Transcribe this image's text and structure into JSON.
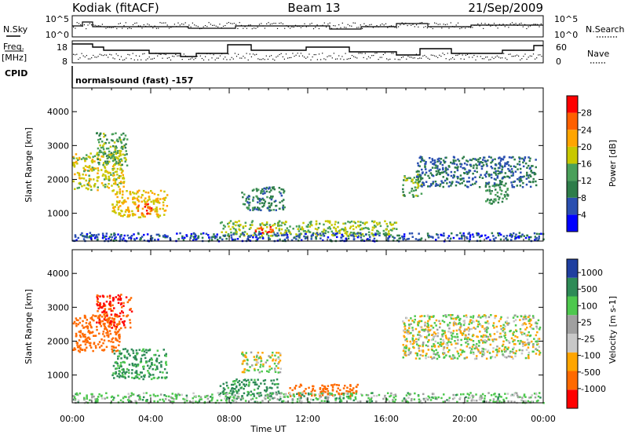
{
  "header": {
    "station": "Kodiak (fitACF)",
    "beam": "Beam 13",
    "date": "21/Sep/2009"
  },
  "summary": {
    "nsky_label": "N.Sky",
    "nsearch_label": "N.Search",
    "noise_ticks_left": [
      "10^5",
      "10^0"
    ],
    "noise_ticks_right": [
      "10^5",
      "10^0"
    ],
    "freq_label": "Freq.",
    "freq_unit": "[MHz]",
    "freq_ticks": [
      "18",
      "8"
    ],
    "nave_label": "Nave",
    "nave_ticks": [
      "60",
      "0"
    ],
    "cpid_label": "CPID",
    "cpid_text": "normalsound (fast) -157"
  },
  "colors": {
    "power": [
      "#0000ff",
      "#2a4fb0",
      "#2e7d4a",
      "#4aa05a",
      "#c8c800",
      "#ffa500",
      "#ff6000",
      "#ff0000"
    ],
    "velocity": [
      "#ff0000",
      "#ff6a00",
      "#ffa500",
      "#c8c8c8",
      "#a0a0a0",
      "#4ec84e",
      "#2e8b57",
      "#1f3fa0"
    ]
  },
  "chart_data": [
    {
      "type": "heatmap",
      "name": "power",
      "xlabel": "",
      "ylabel": "Slant Range [km]",
      "yticks": [
        "1000",
        "2000",
        "3000",
        "4000"
      ],
      "ylim": [
        180,
        4700
      ],
      "xlim": [
        "00:00",
        "24:00"
      ],
      "colorbar_label": "Power [dB]",
      "colorbar_ticks": [
        "4",
        "8",
        "12",
        "16",
        "20",
        "24",
        "28"
      ],
      "clim": [
        0,
        32
      ],
      "regions": [
        {
          "t0": 0.0,
          "t1": 2.6,
          "r0": 1700,
          "r1": 2800,
          "value": 18
        },
        {
          "t0": 1.2,
          "t1": 2.8,
          "r0": 2400,
          "r1": 3400,
          "value": 14
        },
        {
          "t0": 2.0,
          "t1": 4.8,
          "r0": 900,
          "r1": 1700,
          "value": 20
        },
        {
          "t0": 3.2,
          "t1": 4.0,
          "r0": 1000,
          "r1": 1300,
          "value": 28
        },
        {
          "t0": 7.5,
          "t1": 16.5,
          "r0": 350,
          "r1": 800,
          "value": 16
        },
        {
          "t0": 9.2,
          "t1": 10.2,
          "r0": 450,
          "r1": 650,
          "value": 28
        },
        {
          "t0": 8.6,
          "t1": 10.8,
          "r0": 1100,
          "r1": 1800,
          "value": 10
        },
        {
          "t0": 16.8,
          "t1": 17.8,
          "r0": 1500,
          "r1": 2200,
          "value": 14
        },
        {
          "t0": 17.5,
          "t1": 23.6,
          "r0": 1800,
          "r1": 2700,
          "value": 8
        },
        {
          "t0": 21.0,
          "t1": 22.2,
          "r0": 1300,
          "r1": 1900,
          "value": 12
        },
        {
          "t0": 0.0,
          "t1": 24.0,
          "r0": 200,
          "r1": 450,
          "value": 6
        }
      ]
    },
    {
      "type": "heatmap",
      "name": "velocity",
      "xlabel": "Time UT",
      "ylabel": "Slant Range [km]",
      "xticks": [
        "00:00",
        "04:00",
        "08:00",
        "12:00",
        "16:00",
        "20:00",
        "00:00"
      ],
      "yticks": [
        "1000",
        "2000",
        "3000",
        "4000"
      ],
      "ylim": [
        180,
        4700
      ],
      "xlim": [
        "00:00",
        "24:00"
      ],
      "colorbar_label": "Velocity [m s-1]",
      "colorbar_ticks": [
        "1000",
        "500",
        "100",
        "25",
        "-25",
        "-100",
        "-500",
        "-1000"
      ],
      "regions": [
        {
          "t0": 0.0,
          "t1": 2.4,
          "r0": 1700,
          "r1": 2800,
          "value": -300
        },
        {
          "t0": 1.2,
          "t1": 3.0,
          "r0": 2400,
          "r1": 3400,
          "value": -500
        },
        {
          "t0": 2.0,
          "t1": 4.8,
          "r0": 900,
          "r1": 1800,
          "value": 120
        },
        {
          "t0": 7.5,
          "t1": 10.5,
          "r0": 400,
          "r1": 900,
          "value": 150
        },
        {
          "t0": 11.0,
          "t1": 14.5,
          "r0": 400,
          "r1": 750,
          "value": -200
        },
        {
          "t0": 8.6,
          "t1": 10.6,
          "r0": 1100,
          "r1": 1700,
          "value": 0
        },
        {
          "t0": 16.8,
          "t1": 23.8,
          "r0": 1500,
          "r1": 2800,
          "value": 0
        },
        {
          "t0": 0.0,
          "t1": 24.0,
          "r0": 200,
          "r1": 500,
          "value": 50
        }
      ]
    }
  ],
  "time_ticks": [
    "00:00",
    "04:00",
    "08:00",
    "12:00",
    "16:00",
    "20:00",
    "00:00"
  ],
  "time_label": "Time UT"
}
